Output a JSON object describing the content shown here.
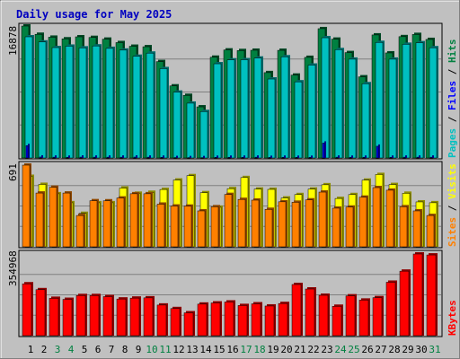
{
  "title": "Daily usage for May 2025",
  "days": [
    "1",
    "2",
    "3",
    "4",
    "5",
    "6",
    "7",
    "8",
    "9",
    "10",
    "11",
    "12",
    "13",
    "14",
    "15",
    "16",
    "17",
    "18",
    "19",
    "20",
    "21",
    "22",
    "23",
    "24",
    "25",
    "26",
    "27",
    "28",
    "29",
    "30",
    "31"
  ],
  "weekend_days": [
    "3",
    "4",
    "10",
    "11",
    "17",
    "18",
    "24",
    "25",
    "31"
  ],
  "colors": {
    "background": "#c0c0c0",
    "title": "#0000c0",
    "hits": "#008040",
    "files": "#0000ff",
    "pages": "#00c0c0",
    "visits": "#ffff00",
    "sites": "#ff8000",
    "kbytes": "#ff0000",
    "weekend": "#008040",
    "weekday": "#000000"
  },
  "chart_data": [
    {
      "type": "bar",
      "title": "Daily usage for May 2025",
      "max_label": "16878",
      "ylim": [
        0,
        16878
      ],
      "legend": [
        "Hits",
        "Files",
        "Pages"
      ],
      "legend_position": "right",
      "series": [
        {
          "name": "Hits",
          "values": [
            16878,
            15820,
            15450,
            15240,
            15500,
            15420,
            15200,
            14760,
            14290,
            14230,
            12330,
            9220,
            8010,
            6540,
            12890,
            13820,
            13740,
            13780,
            10920,
            13770,
            10600,
            12870,
            16540,
            15200,
            13480,
            10380,
            15740,
            13440,
            15520,
            15800,
            15160
          ]
        },
        {
          "name": "Files",
          "values": [
            1580,
            120,
            100,
            90,
            110,
            100,
            100,
            100,
            110,
            100,
            90,
            50,
            40,
            40,
            80,
            90,
            90,
            100,
            70,
            90,
            80,
            80,
            1900,
            100,
            90,
            90,
            1500,
            90,
            100,
            100,
            100
          ]
        },
        {
          "name": "Pages",
          "values": [
            15500,
            14840,
            14120,
            14300,
            14080,
            14330,
            14020,
            13800,
            13010,
            13410,
            11430,
            8420,
            7010,
            5940,
            12050,
            12550,
            12570,
            12780,
            10100,
            12940,
            9740,
            11880,
            15380,
            13860,
            12640,
            9500,
            14780,
            12640,
            14540,
            14740,
            14100
          ]
        }
      ]
    },
    {
      "type": "bar",
      "max_label": "691",
      "ylim": [
        0,
        691
      ],
      "legend": [
        "Visits",
        "Sites"
      ],
      "legend_position": "right",
      "series": [
        {
          "name": "Visits",
          "values": [
            596,
            528,
            449,
            373,
            283,
            373,
            373,
            497,
            453,
            461,
            485,
            565,
            602,
            458,
            335,
            492,
            586,
            488,
            486,
            413,
            442,
            488,
            525,
            409,
            442,
            564,
            612,
            527,
            453,
            380,
            373
          ]
        },
        {
          "name": "Sites",
          "values": [
            691,
            455,
            504,
            455,
            265,
            390,
            389,
            413,
            449,
            449,
            361,
            345,
            344,
            304,
            339,
            443,
            401,
            395,
            317,
            381,
            377,
            397,
            463,
            327,
            336,
            420,
            501,
            479,
            339,
            304,
            265
          ]
        }
      ]
    },
    {
      "type": "bar",
      "max_label": "354968",
      "ylim": [
        0,
        354968
      ],
      "legend": [
        "KBytes"
      ],
      "legend_position": "right",
      "series": [
        {
          "name": "KBytes",
          "values": [
            225400,
            199800,
            162300,
            157800,
            174400,
            174400,
            169800,
            159300,
            163200,
            164400,
            133100,
            117800,
            99400,
            137200,
            142200,
            146400,
            131100,
            138400,
            128900,
            139800,
            222400,
            202800,
            175500,
            127700,
            173000,
            154600,
            165300,
            232200,
            280300,
            354968,
            350800
          ]
        }
      ]
    }
  ]
}
